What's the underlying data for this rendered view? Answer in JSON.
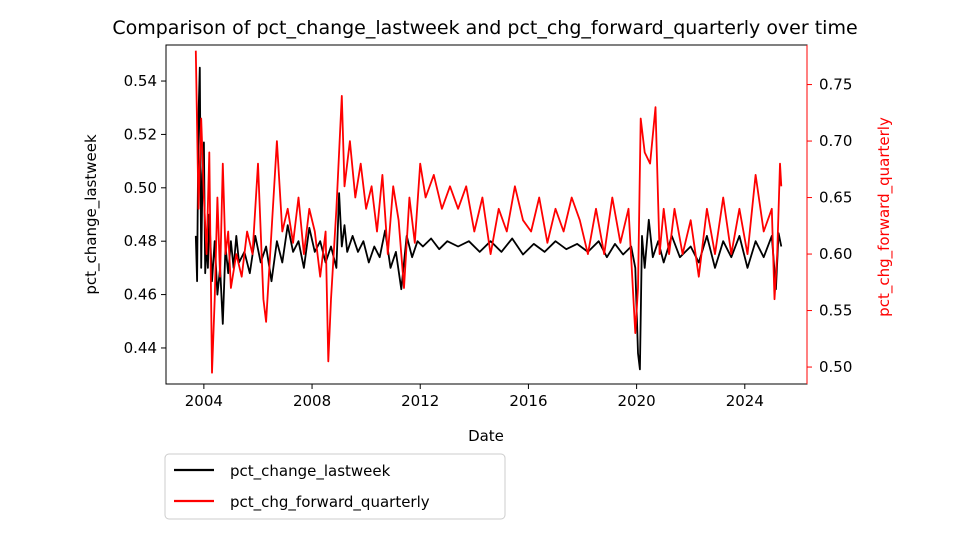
{
  "chart_data": {
    "type": "line",
    "title": "Comparison of pct_change_lastweek and pct_chg_forward_quarterly over time",
    "xlabel": "Date",
    "ylabel_left": "pct_change_lastweek",
    "ylabel_right": "pct_chg_forward_quarterly",
    "x_range": [
      2002.6,
      2026.3
    ],
    "x_ticks": [
      "2004",
      "2008",
      "2012",
      "2016",
      "2020",
      "2024"
    ],
    "ylim_left": [
      0.4265,
      0.5535
    ],
    "y_ticks_left": [
      "0.44",
      "0.46",
      "0.48",
      "0.50",
      "0.52",
      "0.54"
    ],
    "ylim_right": [
      0.485,
      0.785
    ],
    "y_ticks_right": [
      "0.50",
      "0.55",
      "0.60",
      "0.65",
      "0.70",
      "0.75"
    ],
    "legend_position": "below-left",
    "grid": false,
    "series": [
      {
        "name": "pct_change_lastweek",
        "axis": "left",
        "color": "#000000",
        "x": [
          2003.7,
          2003.75,
          2003.8,
          2003.85,
          2003.9,
          2003.95,
          2004.0,
          2004.05,
          2004.1,
          2004.15,
          2004.2,
          2004.3,
          2004.4,
          2004.5,
          2004.6,
          2004.7,
          2004.8,
          2004.9,
          2005.0,
          2005.1,
          2005.2,
          2005.3,
          2005.5,
          2005.7,
          2005.9,
          2006.1,
          2006.3,
          2006.5,
          2006.7,
          2006.9,
          2007.1,
          2007.3,
          2007.5,
          2007.7,
          2007.9,
          2008.1,
          2008.3,
          2008.5,
          2008.7,
          2008.9,
          2009.0,
          2009.1,
          2009.2,
          2009.3,
          2009.5,
          2009.7,
          2009.9,
          2010.1,
          2010.3,
          2010.5,
          2010.7,
          2010.9,
          2011.1,
          2011.3,
          2011.5,
          2011.7,
          2011.9,
          2012.1,
          2012.4,
          2012.7,
          2013.0,
          2013.4,
          2013.8,
          2014.2,
          2014.6,
          2015.0,
          2015.4,
          2015.8,
          2016.2,
          2016.6,
          2017.0,
          2017.4,
          2017.8,
          2018.2,
          2018.6,
          2018.9,
          2019.2,
          2019.5,
          2019.8,
          2019.95,
          2020.05,
          2020.12,
          2020.2,
          2020.3,
          2020.45,
          2020.6,
          2020.8,
          2021.0,
          2021.3,
          2021.6,
          2022.0,
          2022.3,
          2022.6,
          2022.9,
          2023.2,
          2023.5,
          2023.8,
          2024.1,
          2024.4,
          2024.7,
          2025.0,
          2025.15,
          2025.25,
          2025.35
        ],
        "y": [
          0.482,
          0.465,
          0.527,
          0.545,
          0.47,
          0.505,
          0.517,
          0.468,
          0.48,
          0.47,
          0.49,
          0.465,
          0.48,
          0.46,
          0.47,
          0.449,
          0.478,
          0.468,
          0.48,
          0.47,
          0.482,
          0.472,
          0.476,
          0.468,
          0.482,
          0.472,
          0.478,
          0.465,
          0.48,
          0.472,
          0.486,
          0.476,
          0.48,
          0.47,
          0.485,
          0.476,
          0.48,
          0.472,
          0.478,
          0.47,
          0.498,
          0.478,
          0.486,
          0.476,
          0.482,
          0.476,
          0.48,
          0.472,
          0.478,
          0.474,
          0.484,
          0.47,
          0.476,
          0.462,
          0.482,
          0.474,
          0.48,
          0.478,
          0.481,
          0.477,
          0.48,
          0.478,
          0.48,
          0.476,
          0.48,
          0.476,
          0.481,
          0.475,
          0.479,
          0.476,
          0.48,
          0.477,
          0.479,
          0.476,
          0.48,
          0.474,
          0.479,
          0.475,
          0.478,
          0.47,
          0.438,
          0.432,
          0.482,
          0.47,
          0.488,
          0.474,
          0.48,
          0.472,
          0.482,
          0.474,
          0.478,
          0.472,
          0.482,
          0.47,
          0.48,
          0.474,
          0.482,
          0.47,
          0.48,
          0.474,
          0.482,
          0.462,
          0.483,
          0.478
        ]
      },
      {
        "name": "pct_chg_forward_quarterly",
        "axis": "right",
        "color": "#ff0000",
        "x": [
          2003.7,
          2003.8,
          2003.9,
          2004.0,
          2004.1,
          2004.2,
          2004.3,
          2004.4,
          2004.5,
          2004.6,
          2004.7,
          2004.8,
          2004.9,
          2005.0,
          2005.2,
          2005.4,
          2005.6,
          2005.8,
          2006.0,
          2006.2,
          2006.3,
          2006.5,
          2006.7,
          2006.9,
          2007.1,
          2007.3,
          2007.5,
          2007.7,
          2007.9,
          2008.1,
          2008.3,
          2008.5,
          2008.6,
          2008.7,
          2008.9,
          2009.1,
          2009.2,
          2009.4,
          2009.6,
          2009.8,
          2010.0,
          2010.2,
          2010.4,
          2010.6,
          2010.8,
          2011.0,
          2011.2,
          2011.4,
          2011.6,
          2011.8,
          2012.0,
          2012.2,
          2012.5,
          2012.8,
          2013.1,
          2013.4,
          2013.7,
          2014.0,
          2014.3,
          2014.6,
          2014.9,
          2015.2,
          2015.5,
          2015.8,
          2016.1,
          2016.4,
          2016.7,
          2017.0,
          2017.3,
          2017.6,
          2017.9,
          2018.2,
          2018.5,
          2018.8,
          2019.1,
          2019.4,
          2019.7,
          2019.95,
          2020.05,
          2020.15,
          2020.3,
          2020.5,
          2020.7,
          2020.85,
          2021.0,
          2021.2,
          2021.4,
          2021.7,
          2022.0,
          2022.3,
          2022.6,
          2022.9,
          2023.2,
          2023.5,
          2023.8,
          2024.1,
          2024.4,
          2024.7,
          2025.0,
          2025.1,
          2025.2,
          2025.3,
          2025.35
        ],
        "y": [
          0.78,
          0.64,
          0.72,
          0.65,
          0.6,
          0.69,
          0.495,
          0.56,
          0.65,
          0.58,
          0.68,
          0.6,
          0.62,
          0.57,
          0.6,
          0.58,
          0.62,
          0.6,
          0.68,
          0.56,
          0.54,
          0.62,
          0.7,
          0.62,
          0.64,
          0.61,
          0.65,
          0.6,
          0.64,
          0.62,
          0.58,
          0.62,
          0.505,
          0.56,
          0.64,
          0.74,
          0.66,
          0.7,
          0.65,
          0.68,
          0.64,
          0.66,
          0.62,
          0.67,
          0.6,
          0.66,
          0.63,
          0.57,
          0.65,
          0.61,
          0.68,
          0.65,
          0.67,
          0.64,
          0.66,
          0.64,
          0.66,
          0.62,
          0.65,
          0.6,
          0.64,
          0.62,
          0.66,
          0.63,
          0.62,
          0.65,
          0.61,
          0.64,
          0.62,
          0.65,
          0.63,
          0.6,
          0.64,
          0.6,
          0.65,
          0.61,
          0.64,
          0.53,
          0.57,
          0.72,
          0.69,
          0.68,
          0.73,
          0.6,
          0.64,
          0.6,
          0.64,
          0.6,
          0.63,
          0.58,
          0.64,
          0.6,
          0.65,
          0.6,
          0.64,
          0.6,
          0.67,
          0.62,
          0.64,
          0.56,
          0.6,
          0.68,
          0.66
        ]
      }
    ]
  }
}
